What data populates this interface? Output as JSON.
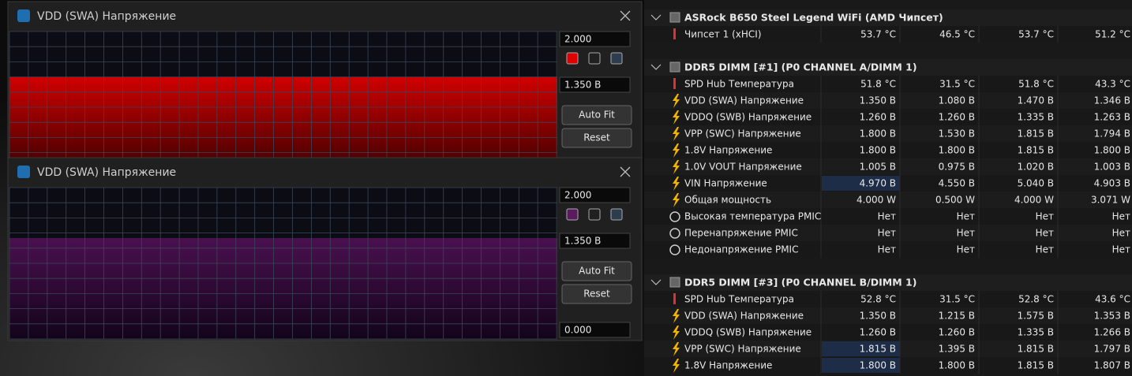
{
  "windows": [
    {
      "title": "VDD (SWA) Напряжение",
      "max": "2.000",
      "current": "1.350 В",
      "auto_fit": "Auto Fit",
      "reset": "Reset"
    },
    {
      "title": "VDD (SWA) Напряжение",
      "max": "2.000",
      "current": "1.350 В",
      "auto_fit": "Auto Fit",
      "reset": "Reset",
      "min": "0.000"
    }
  ],
  "sensors": {
    "groups": [
      {
        "name": "ASRock B650 Steel Legend WiFi (AMD Чипсет)",
        "rows": [
          [
            "Чипсет 1 (xHCI)",
            "53.7 °C",
            "46.5 °C",
            "53.7 °C",
            "51.2 °C"
          ]
        ]
      },
      {
        "name": "DDR5 DIMM [#1] (P0 CHANNEL A/DIMM 1)",
        "rows": [
          [
            "SPD Hub Температура",
            "51.8 °C",
            "31.5 °C",
            "51.8 °C",
            "43.3 °C"
          ],
          [
            "VDD (SWA) Напряжение",
            "1.350 В",
            "1.080 В",
            "1.470 В",
            "1.346 В"
          ],
          [
            "VDDQ (SWB) Напряжение",
            "1.260 В",
            "1.260 В",
            "1.335 В",
            "1.263 В"
          ],
          [
            "VPP (SWC) Напряжение",
            "1.800 В",
            "1.530 В",
            "1.815 В",
            "1.794 В"
          ],
          [
            "1.8V Напряжение",
            "1.800 В",
            "1.800 В",
            "1.815 В",
            "1.800 В"
          ],
          [
            "1.0V VOUT Напряжение",
            "1.005 В",
            "0.975 В",
            "1.020 В",
            "1.003 В"
          ],
          [
            "VIN Напряжение",
            "4.970 В",
            "4.550 В",
            "5.040 В",
            "4.903 В"
          ],
          [
            "Общая мощность",
            "4.000 W",
            "0.500 W",
            "4.000 W",
            "3.071 W"
          ],
          [
            "Высокая температура PMIC",
            "Нет",
            "Нет",
            "Нет",
            "Нет"
          ],
          [
            "Перенапряжение PMIC",
            "Нет",
            "Нет",
            "Нет",
            "Нет"
          ],
          [
            "Недонапряжение PMIC",
            "Нет",
            "Нет",
            "Нет",
            "Нет"
          ]
        ]
      },
      {
        "name": "DDR5 DIMM [#3] (P0 CHANNEL B/DIMM 1)",
        "rows": [
          [
            "SPD Hub Температура",
            "52.8 °C",
            "31.5 °C",
            "52.8 °C",
            "43.6 °C"
          ],
          [
            "VDD (SWA) Напряжение",
            "1.350 В",
            "1.215 В",
            "1.575 В",
            "1.353 В"
          ],
          [
            "VDDQ (SWB) Напряжение",
            "1.260 В",
            "1.260 В",
            "1.335 В",
            "1.266 В"
          ],
          [
            "VPP (SWC) Напряжение",
            "1.815 В",
            "1.395 В",
            "1.815 В",
            "1.797 В"
          ],
          [
            "1.8V Напряжение",
            "1.800 В",
            "1.800 В",
            "1.815 В",
            "1.807 В"
          ]
        ]
      }
    ]
  }
}
